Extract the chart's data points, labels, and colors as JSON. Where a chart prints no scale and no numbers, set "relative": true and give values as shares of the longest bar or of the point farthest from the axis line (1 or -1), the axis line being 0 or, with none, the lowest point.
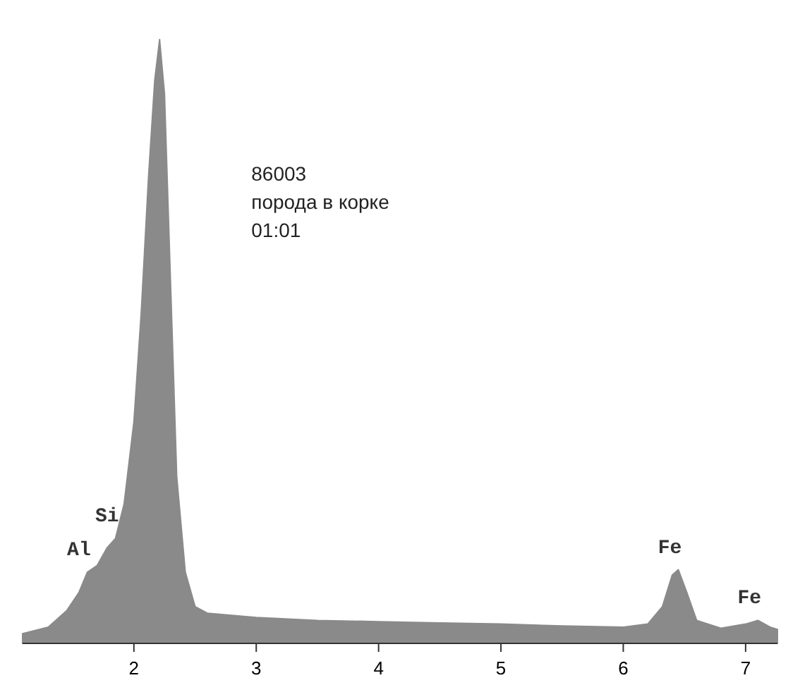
{
  "chart_data": {
    "type": "area",
    "relative": true,
    "color": "#8a8a8a",
    "x": [
      1.09,
      1.3,
      1.45,
      1.55,
      1.62,
      1.7,
      1.78,
      1.85,
      1.92,
      2.0,
      2.06,
      2.12,
      2.17,
      2.21,
      2.25,
      2.3,
      2.35,
      2.42,
      2.5,
      2.6,
      3.0,
      3.5,
      4.0,
      4.5,
      5.0,
      5.5,
      6.0,
      6.2,
      6.32,
      6.4,
      6.45,
      6.52,
      6.6,
      6.8,
      7.0,
      7.1,
      7.2,
      7.26
    ],
    "values": [
      0.016,
      0.027,
      0.054,
      0.084,
      0.118,
      0.129,
      0.158,
      0.174,
      0.231,
      0.367,
      0.548,
      0.774,
      0.932,
      1,
      0.91,
      0.593,
      0.276,
      0.118,
      0.061,
      0.05,
      0.043,
      0.038,
      0.036,
      0.034,
      0.032,
      0.029,
      0.027,
      0.032,
      0.061,
      0.113,
      0.122,
      0.084,
      0.038,
      0.025,
      0.032,
      0.038,
      0.027,
      0.023
    ],
    "xlim": [
      1.09,
      7.26
    ],
    "xticks": [
      2,
      3,
      4,
      5,
      6,
      7
    ],
    "grid": false,
    "annotations": [
      {
        "text": "Al",
        "x": 1.62,
        "y": 0.118
      },
      {
        "text": "Si",
        "x": 1.85,
        "y": 0.174
      },
      {
        "text": "Fe",
        "x": 6.45,
        "y": 0.122
      },
      {
        "text": "Fe",
        "x": 7.1,
        "y": 0.038
      },
      "86003",
      "порода в корке",
      "01:01"
    ]
  }
}
